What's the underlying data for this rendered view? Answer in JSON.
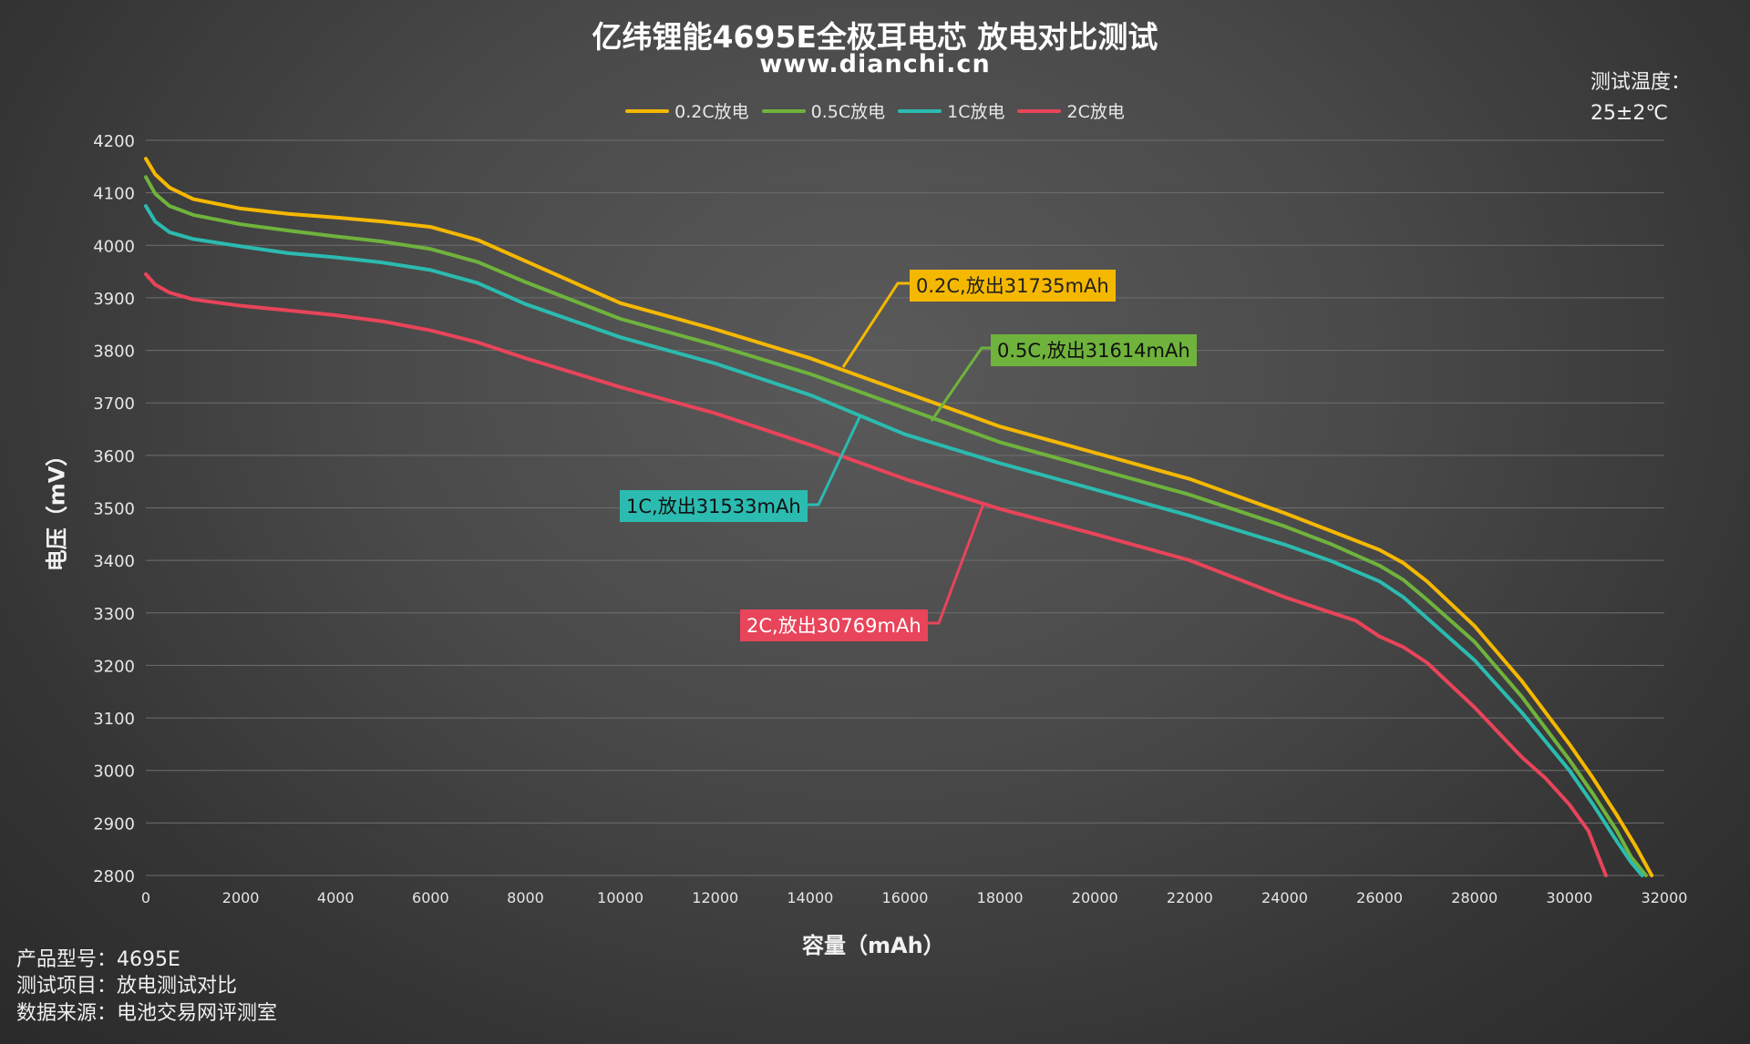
{
  "header": {
    "title": "亿纬锂能4695E全极耳电芯 放电对比测试",
    "subtitle": "www.dianchi.cn",
    "temp_label": "测试温度：",
    "temp_value": "25±2℃"
  },
  "footer": {
    "line1": "产品型号：4695E",
    "line2": "测试项目：放电测试对比",
    "line3": "数据来源：电池交易网评测室"
  },
  "colors": {
    "c02": "#f5b800",
    "c05": "#6fb33c",
    "c1": "#2bbbb0",
    "c2": "#e8445a"
  },
  "chart_data": {
    "type": "line",
    "xlabel": "容量（mAh）",
    "ylabel": "电压（mV）",
    "xlim": [
      0,
      32000
    ],
    "ylim": [
      2800,
      4200
    ],
    "xticks": [
      0,
      2000,
      4000,
      6000,
      8000,
      10000,
      12000,
      14000,
      16000,
      18000,
      20000,
      22000,
      24000,
      26000,
      28000,
      30000,
      32000
    ],
    "yticks": [
      2800,
      2900,
      3000,
      3100,
      3200,
      3300,
      3400,
      3500,
      3600,
      3700,
      3800,
      3900,
      4000,
      4100,
      4200
    ],
    "grid": "horizontal",
    "legend_position": "top-center",
    "series": [
      {
        "name": "0.2C放电",
        "color": "#f5b800",
        "annotation": "0.2C,放出31735mAh",
        "x": [
          0,
          200,
          500,
          1000,
          2000,
          3000,
          4000,
          5000,
          6000,
          7000,
          8000,
          10000,
          12000,
          14000,
          16000,
          18000,
          20000,
          22000,
          24000,
          25000,
          26000,
          26500,
          27000,
          28000,
          29000,
          30000,
          30500,
          31000,
          31400,
          31735
        ],
        "y": [
          4165,
          4135,
          4110,
          4088,
          4070,
          4060,
          4053,
          4045,
          4035,
          4010,
          3970,
          3890,
          3840,
          3785,
          3720,
          3655,
          3605,
          3555,
          3490,
          3455,
          3420,
          3395,
          3360,
          3275,
          3170,
          3050,
          2985,
          2915,
          2855,
          2800
        ]
      },
      {
        "name": "0.5C放电",
        "color": "#6fb33c",
        "annotation": "0.5C,放出31614mAh",
        "x": [
          0,
          200,
          500,
          1000,
          2000,
          3000,
          4000,
          5000,
          6000,
          7000,
          8000,
          10000,
          12000,
          14000,
          16000,
          18000,
          20000,
          22000,
          24000,
          25000,
          26000,
          26500,
          27000,
          28000,
          29000,
          30000,
          30500,
          31000,
          31300,
          31614
        ],
        "y": [
          4130,
          4098,
          4075,
          4058,
          4040,
          4028,
          4017,
          4007,
          3993,
          3968,
          3930,
          3860,
          3810,
          3755,
          3690,
          3625,
          3575,
          3525,
          3465,
          3430,
          3390,
          3363,
          3325,
          3245,
          3140,
          3020,
          2955,
          2885,
          2835,
          2800
        ]
      },
      {
        "name": "1C放电",
        "color": "#2bbbb0",
        "annotation": "1C,放出31533mAh",
        "x": [
          0,
          200,
          500,
          1000,
          2000,
          3000,
          4000,
          5000,
          6000,
          7000,
          8000,
          10000,
          12000,
          14000,
          16000,
          18000,
          20000,
          22000,
          24000,
          25000,
          26000,
          26500,
          27000,
          28000,
          29000,
          30000,
          30500,
          31000,
          31300,
          31533
        ],
        "y": [
          4075,
          4045,
          4025,
          4012,
          3998,
          3985,
          3977,
          3967,
          3953,
          3928,
          3888,
          3825,
          3775,
          3715,
          3640,
          3585,
          3535,
          3485,
          3430,
          3398,
          3360,
          3330,
          3290,
          3210,
          3110,
          3000,
          2935,
          2865,
          2825,
          2800
        ]
      },
      {
        "name": "2C放电",
        "color": "#e8445a",
        "annotation": "2C,放出30769mAh",
        "x": [
          0,
          200,
          500,
          1000,
          2000,
          3000,
          4000,
          5000,
          6000,
          7000,
          8000,
          10000,
          12000,
          14000,
          16000,
          18000,
          20000,
          22000,
          24000,
          25000,
          25500,
          26000,
          26500,
          27000,
          28000,
          29000,
          29500,
          30000,
          30400,
          30769
        ],
        "y": [
          3945,
          3925,
          3910,
          3897,
          3885,
          3876,
          3867,
          3855,
          3838,
          3815,
          3785,
          3730,
          3680,
          3620,
          3555,
          3498,
          3450,
          3400,
          3330,
          3300,
          3285,
          3255,
          3235,
          3205,
          3120,
          3025,
          2985,
          2935,
          2885,
          2800
        ]
      }
    ]
  }
}
